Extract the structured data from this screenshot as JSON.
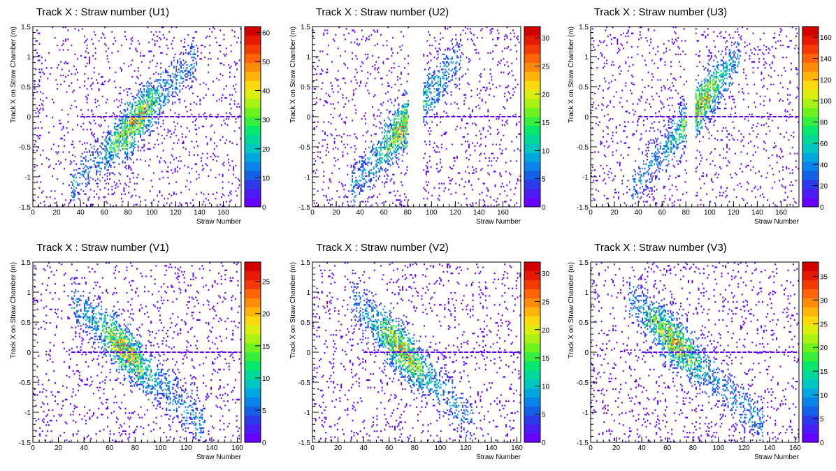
{
  "colors": {
    "background": "#ffffff",
    "axis": "#000000",
    "palette": [
      "#6600ff",
      "#4b1cf5",
      "#2b3bea",
      "#1460e6",
      "#0a84e8",
      "#00a6de",
      "#00c7c1",
      "#00d99a",
      "#07e66d",
      "#35ef3c",
      "#6ef21d",
      "#a9f213",
      "#dcee0e",
      "#fbd90c",
      "#ffb40a",
      "#ff8c08",
      "#ff6306",
      "#f53b05",
      "#e61a03",
      "#d40000"
    ]
  },
  "chart_data": [
    {
      "type": "heatmap",
      "title": "Track X : Straw number (U1)",
      "xlabel": "Straw Number",
      "ylabel": "Track X on Straw Chamber (m)",
      "xlim": [
        0,
        175
      ],
      "ylim": [
        -1.5,
        1.5
      ],
      "xticks": [
        0,
        20,
        40,
        60,
        80,
        100,
        120,
        140,
        160
      ],
      "yticks": [
        -1.5,
        -1,
        -0.5,
        0,
        0.5,
        1,
        1.5
      ],
      "zmax": 62,
      "zticks": [
        0,
        10,
        20,
        30,
        40,
        50,
        60
      ],
      "band": {
        "x_start": 32,
        "x_end": 138,
        "y_start": -1.2,
        "y_end": 1.0,
        "peak_x": 85
      },
      "gaps": [],
      "hline": {
        "y": 0,
        "x_from": 40,
        "x_to": 175
      }
    },
    {
      "type": "heatmap",
      "title": "Track X : Straw number (U2)",
      "xlabel": "Straw Number",
      "ylabel": "Track X on Straw Chamber (m)",
      "xlim": [
        0,
        175
      ],
      "ylim": [
        -1.5,
        1.5
      ],
      "xticks": [
        0,
        20,
        40,
        60,
        80,
        100,
        120,
        140,
        160
      ],
      "yticks": [
        -1.5,
        -1,
        -0.5,
        0,
        0.5,
        1,
        1.5
      ],
      "zmax": 32,
      "zticks": [
        0,
        5,
        10,
        15,
        20,
        25,
        30
      ],
      "band": {
        "x_start": 32,
        "x_end": 125,
        "y_start": -1.2,
        "y_end": 1.0,
        "peak_x": 78
      },
      "gaps": [
        [
          81,
          93
        ]
      ],
      "hline": {
        "y": 0,
        "x_from": 93,
        "x_to": 175
      }
    },
    {
      "type": "heatmap",
      "title": "Track X : Straw number (U3)",
      "xlabel": "Straw Number",
      "ylabel": "Track X on Straw Chamber (m)",
      "xlim": [
        0,
        175
      ],
      "ylim": [
        -1.5,
        1.5
      ],
      "xticks": [
        0,
        20,
        40,
        60,
        80,
        100,
        120,
        140,
        160
      ],
      "yticks": [
        -1.5,
        -1,
        -0.5,
        0,
        0.5,
        1,
        1.5
      ],
      "zmax": 170,
      "zticks": [
        0,
        20,
        40,
        60,
        80,
        100,
        120,
        140,
        160
      ],
      "band": {
        "x_start": 35,
        "x_end": 125,
        "y_start": -1.2,
        "y_end": 1.0,
        "peak_x": 92
      },
      "gaps": [
        [
          81,
          88
        ]
      ],
      "hline": {
        "y": 0,
        "x_from": 40,
        "x_to": 175
      }
    },
    {
      "type": "heatmap",
      "title": "Track X : Straw number (V1)",
      "xlabel": "Straw Number",
      "ylabel": "Track X on Straw Chamber (m)",
      "xlim": [
        0,
        163
      ],
      "ylim": [
        -1.5,
        1.5
      ],
      "xticks": [
        0,
        20,
        40,
        60,
        80,
        100,
        120,
        140,
        160
      ],
      "yticks": [
        -1.5,
        -1,
        -0.5,
        0,
        0.5,
        1,
        1.5
      ],
      "zmax": 28,
      "zticks": [
        0,
        5,
        10,
        15,
        20,
        25
      ],
      "band": {
        "x_start": 30,
        "x_end": 135,
        "y_start": 0.9,
        "y_end": -1.25,
        "peak_x": 72
      },
      "gaps": [],
      "hline": {
        "y": 0,
        "x_from": 30,
        "x_to": 163
      }
    },
    {
      "type": "heatmap",
      "title": "Track X : Straw number (V2)",
      "xlabel": "Straw Number",
      "ylabel": "Track X on Straw Chamber (m)",
      "xlim": [
        0,
        163
      ],
      "ylim": [
        -1.5,
        1.5
      ],
      "xticks": [
        0,
        20,
        40,
        60,
        80,
        100,
        120,
        140,
        160
      ],
      "yticks": [
        -1.5,
        -1,
        -0.5,
        0,
        0.5,
        1,
        1.5
      ],
      "zmax": 32,
      "zticks": [
        0,
        5,
        10,
        15,
        20,
        25,
        30
      ],
      "band": {
        "x_start": 30,
        "x_end": 125,
        "y_start": 0.9,
        "y_end": -1.15,
        "peak_x": 70
      },
      "gaps": [],
      "hline": {
        "y": 0,
        "x_from": 40,
        "x_to": 163
      }
    },
    {
      "type": "heatmap",
      "title": "Track X : Straw number (V3)",
      "xlabel": "Straw Number",
      "ylabel": "Track X on Straw Chamber (m)",
      "xlim": [
        0,
        163
      ],
      "ylim": [
        -1.5,
        1.5
      ],
      "xticks": [
        0,
        20,
        40,
        60,
        80,
        100,
        120,
        140,
        160
      ],
      "yticks": [
        -1.5,
        -1,
        -0.5,
        0,
        0.5,
        1,
        1.5
      ],
      "zmax": 38,
      "zticks": [
        0,
        5,
        10,
        15,
        20,
        25,
        30,
        35
      ],
      "band": {
        "x_start": 30,
        "x_end": 137,
        "y_start": 0.9,
        "y_end": -1.25,
        "peak_x": 65
      },
      "gaps": [],
      "hline": {
        "y": 0,
        "x_from": 40,
        "x_to": 163
      }
    }
  ]
}
